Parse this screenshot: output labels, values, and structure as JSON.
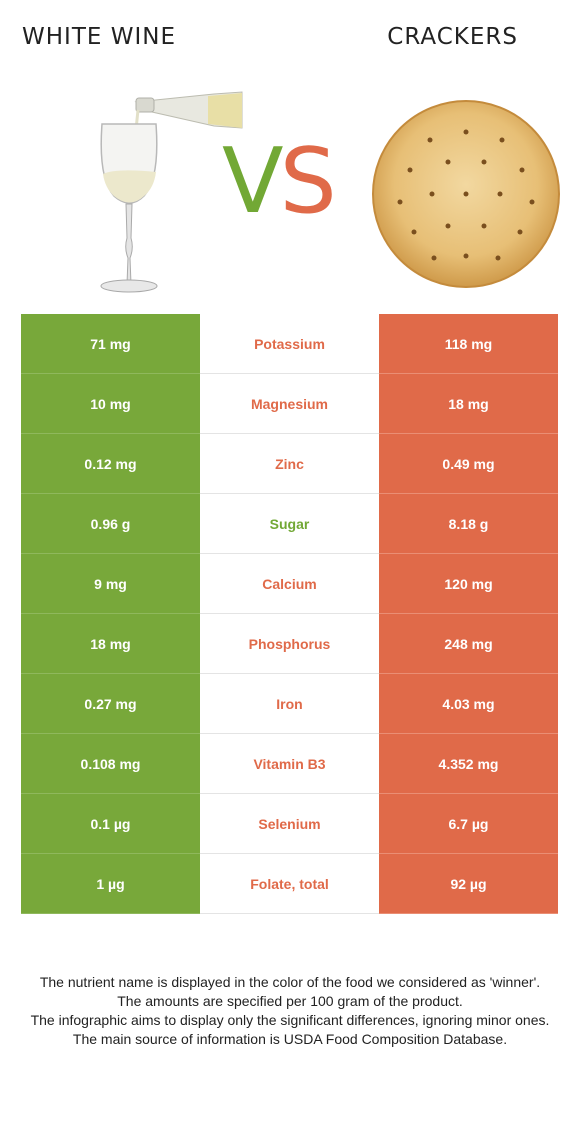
{
  "header": {
    "left_title": "WHITE WINE",
    "right_title": "CRACKERS",
    "vs_v": "V",
    "vs_s": "S"
  },
  "colors": {
    "winner_left": "#78a83a",
    "winner_right": "#e06a49"
  },
  "icons": {
    "left": "white-wine-glass-icon",
    "right": "cracker-icon"
  },
  "rows": [
    {
      "left": "71 mg",
      "nutrient": "Potassium",
      "right": "118 mg",
      "winner": "right"
    },
    {
      "left": "10 mg",
      "nutrient": "Magnesium",
      "right": "18 mg",
      "winner": "right"
    },
    {
      "left": "0.12 mg",
      "nutrient": "Zinc",
      "right": "0.49 mg",
      "winner": "right"
    },
    {
      "left": "0.96 g",
      "nutrient": "Sugar",
      "right": "8.18 g",
      "winner": "left"
    },
    {
      "left": "9 mg",
      "nutrient": "Calcium",
      "right": "120 mg",
      "winner": "right"
    },
    {
      "left": "18 mg",
      "nutrient": "Phosphorus",
      "right": "248 mg",
      "winner": "right"
    },
    {
      "left": "0.27 mg",
      "nutrient": "Iron",
      "right": "4.03 mg",
      "winner": "right"
    },
    {
      "left": "0.108 mg",
      "nutrient": "Vitamin B3",
      "right": "4.352 mg",
      "winner": "right"
    },
    {
      "left": "0.1 µg",
      "nutrient": "Selenium",
      "right": "6.7 µg",
      "winner": "right"
    },
    {
      "left": "1 µg",
      "nutrient": "Folate, total",
      "right": "92 µg",
      "winner": "right"
    }
  ],
  "footer": {
    "line1": "The nutrient name is displayed in the color of the food we considered as 'winner'.",
    "line2": "The amounts are specified per 100 gram of the product.",
    "line3": "The infographic aims to display only the significant differences, ignoring minor ones.",
    "line4": "The main source of information is USDA Food Composition Database."
  }
}
